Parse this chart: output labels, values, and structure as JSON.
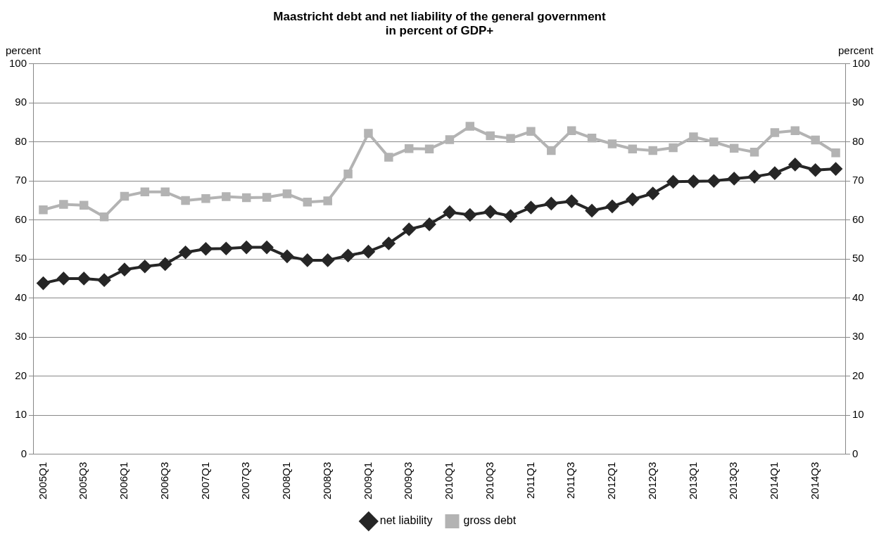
{
  "chart_data": {
    "type": "line",
    "title": "Maastricht debt and net liability of the general government\nin percent of GDP+",
    "ylabel": "percent",
    "y2label": "percent",
    "categories": [
      "2005Q1",
      null,
      "2005Q3",
      null,
      "2006Q1",
      null,
      "2006Q3",
      null,
      "2007Q1",
      null,
      "2007Q3",
      null,
      "2008Q1",
      null,
      "2008Q3",
      null,
      "2009Q1",
      null,
      "2009Q3",
      null,
      "2010Q1",
      null,
      "2010Q3",
      null,
      "2011Q1",
      null,
      "2011Q3",
      null,
      "2012Q1",
      null,
      "2012Q3",
      null,
      "2013Q1",
      null,
      "2013Q3",
      null,
      "2014Q1",
      null,
      "2014Q3",
      null
    ],
    "series": [
      {
        "name": "net liability",
        "color": "#262626",
        "marker": "diamond",
        "values": [
          43.8,
          45.0,
          45.0,
          44.6,
          47.3,
          48.1,
          48.7,
          51.7,
          52.6,
          52.7,
          53.0,
          53.0,
          50.7,
          49.7,
          49.7,
          50.9,
          51.9,
          54.0,
          57.6,
          58.9,
          62.0,
          61.3,
          62.1,
          61.0,
          63.2,
          64.2,
          64.8,
          62.4,
          63.5,
          65.3,
          66.8,
          69.8,
          69.9,
          70.0,
          70.6,
          71.1,
          72.0,
          74.2,
          72.8,
          73.1
        ]
      },
      {
        "name": "gross debt",
        "color": "#b3b3b3",
        "marker": "square",
        "values": [
          62.6,
          64.0,
          63.8,
          60.8,
          66.1,
          67.2,
          67.2,
          65.0,
          65.5,
          66.0,
          65.7,
          65.8,
          66.7,
          64.6,
          64.9,
          71.8,
          82.2,
          76.1,
          78.3,
          78.2,
          80.6,
          84.0,
          81.6,
          80.9,
          82.7,
          77.8,
          82.9,
          81.0,
          79.5,
          78.2,
          77.8,
          78.5,
          81.3,
          80.0,
          78.4,
          77.4,
          82.4,
          82.9,
          80.5,
          77.2
        ]
      }
    ],
    "ylim": [
      0,
      100
    ],
    "yticks": [
      0,
      10,
      20,
      30,
      40,
      50,
      60,
      70,
      80,
      90,
      100
    ],
    "y2lim": [
      0,
      100
    ],
    "y2ticks": [
      0,
      10,
      20,
      30,
      40,
      50,
      60,
      70,
      80,
      90,
      100
    ],
    "grid": "y",
    "legend": "bottom",
    "line_style": "solid"
  }
}
